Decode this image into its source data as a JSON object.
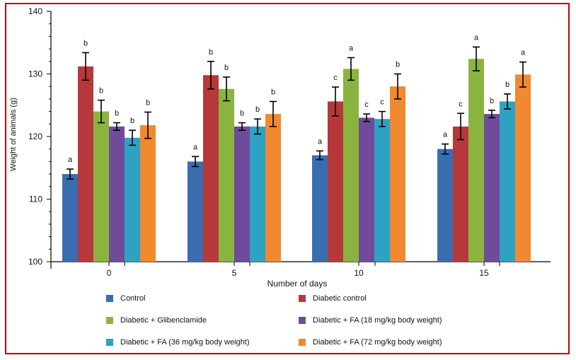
{
  "chart_data": {
    "type": "bar",
    "xlabel": "Number of days",
    "ylabel": "Weight of animals (g)",
    "ylim": [
      100,
      140
    ],
    "yticks": [
      100,
      110,
      120,
      130,
      140
    ],
    "categories": [
      "0",
      "5",
      "10",
      "15"
    ],
    "series": [
      {
        "name": "Control",
        "color": "#3a6db0",
        "values": [
          114.0,
          116.0,
          117.0,
          118.0
        ],
        "errors": [
          0.8,
          0.8,
          0.7,
          0.8
        ],
        "letters": [
          "a",
          "a",
          "a",
          "a"
        ]
      },
      {
        "name": "Diabetic control",
        "color": "#b7383a",
        "values": [
          131.2,
          129.8,
          125.6,
          121.6
        ],
        "errors": [
          2.2,
          2.2,
          2.3,
          2.1
        ],
        "letters": [
          "b",
          "b",
          "c",
          "c"
        ]
      },
      {
        "name": "Diabetic + Glibenclamide",
        "color": "#8ab43f",
        "values": [
          124.0,
          127.6,
          130.8,
          132.4
        ],
        "errors": [
          1.8,
          1.9,
          1.8,
          1.9
        ],
        "letters": [
          "b",
          "b",
          "a",
          "a"
        ]
      },
      {
        "name": "Diabetic + FA (18 mg/kg body weight)",
        "color": "#6f4b9a",
        "values": [
          121.6,
          121.6,
          123.0,
          123.6
        ],
        "errors": [
          0.6,
          0.6,
          0.6,
          0.6
        ],
        "letters": [
          "b",
          "b",
          "c",
          "b"
        ]
      },
      {
        "name": "Diabetic + FA (36 mg/kg body weight)",
        "color": "#2fa2c4",
        "values": [
          119.8,
          121.6,
          122.8,
          125.6
        ],
        "errors": [
          1.2,
          1.2,
          1.2,
          1.2
        ],
        "letters": [
          "b",
          "b",
          "c",
          "b"
        ]
      },
      {
        "name": "Diabetic + FA (72 mg/kg body weight)",
        "color": "#f0892f",
        "values": [
          121.8,
          123.6,
          128.0,
          129.9
        ],
        "errors": [
          2.1,
          2.0,
          2.0,
          2.0
        ],
        "letters": [
          "b",
          "b",
          "b",
          "a"
        ]
      }
    ],
    "grid": false,
    "legend_position": "bottom"
  }
}
